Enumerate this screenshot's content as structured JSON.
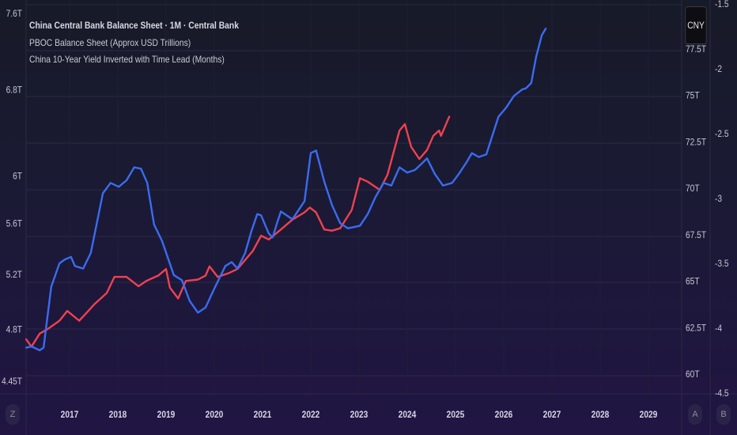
{
  "legend": {
    "title": "China Central Bank Balance Sheet · 1M · Central Bank",
    "series_1": "PBOC Balance Sheet (Approx USD Trillions)",
    "series_2": "China 10-Year Yield Inverted with Time Lead (Months)"
  },
  "currency_badge": "CNY",
  "axis_buttons": {
    "left": "Z",
    "right_a": "A",
    "right_b": "B"
  },
  "colors": {
    "red_series": "#f0414f",
    "blue_series": "#3a6cf0",
    "grid": "#2c2c44",
    "text": "#c7c6d4"
  },
  "chart_data": {
    "type": "line",
    "title": "China Central Bank Balance Sheet · 1M · Central Bank",
    "xlabel": "",
    "x_ticks": [
      "2017",
      "2018",
      "2019",
      "2020",
      "2021",
      "2022",
      "2023",
      "2024",
      "2025",
      "2026",
      "2027",
      "2028",
      "2029"
    ],
    "xlim": [
      2016.1,
      2030.0
    ],
    "left_axis": {
      "ticks": [
        "7.6T",
        "6.8T",
        "6T",
        "5.6T",
        "5.2T",
        "4.8T",
        "4.45T"
      ],
      "tick_values": [
        7.6,
        6.8,
        6.0,
        5.6,
        5.2,
        4.8,
        4.45
      ],
      "range": [
        4.35,
        7.75
      ],
      "scale": "log"
    },
    "right_axis_a": {
      "ticks": [
        "77.5T",
        "75T",
        "72.5T",
        "70T",
        "67.5T",
        "65T",
        "62.5T",
        "60T"
      ],
      "tick_values": [
        77.5,
        75,
        72.5,
        70,
        67.5,
        65,
        62.5,
        60
      ]
    },
    "right_axis_b": {
      "ticks": [
        "-1.5",
        "-2",
        "-2.5",
        "-3",
        "-3.5",
        "-4",
        "-4.5"
      ],
      "tick_values": [
        -1.5,
        -2,
        -2.5,
        -3,
        -3.5,
        -4,
        -4.5
      ],
      "range": [
        -1.47,
        -4.53
      ]
    },
    "grid": true,
    "legend_position": "top-left",
    "series": [
      {
        "name": "PBOC Balance Sheet (Approx USD Trillions)",
        "axis": "left",
        "color": "#f0414f",
        "x": [
          2016.1,
          2016.21,
          2016.38,
          2016.54,
          2016.79,
          2016.95,
          2017.2,
          2017.36,
          2017.52,
          2017.77,
          2017.93,
          2018.18,
          2018.43,
          2018.59,
          2018.84,
          2019.0,
          2019.08,
          2019.25,
          2019.41,
          2019.66,
          2019.82,
          2019.9,
          2020.07,
          2020.31,
          2020.48,
          2020.8,
          2020.97,
          2021.13,
          2021.38,
          2021.62,
          2021.87,
          2021.98,
          2022.11,
          2022.28,
          2022.44,
          2022.61,
          2022.85,
          2023.02,
          2023.18,
          2023.43,
          2023.59,
          2023.84,
          2023.95,
          2024.08,
          2024.25,
          2024.41,
          2024.54,
          2024.66,
          2024.7,
          2024.87
        ],
        "y": [
          4.73,
          4.68,
          4.77,
          4.8,
          4.86,
          4.93,
          4.86,
          4.92,
          4.98,
          5.06,
          5.18,
          5.18,
          5.11,
          5.15,
          5.19,
          5.24,
          5.1,
          5.02,
          5.15,
          5.16,
          5.19,
          5.26,
          5.18,
          5.21,
          5.24,
          5.38,
          5.5,
          5.47,
          5.55,
          5.63,
          5.69,
          5.73,
          5.69,
          5.55,
          5.54,
          5.56,
          5.71,
          5.98,
          5.95,
          5.88,
          6.01,
          6.41,
          6.47,
          6.26,
          6.15,
          6.23,
          6.36,
          6.41,
          6.36,
          6.54
        ]
      },
      {
        "name": "China 10-Year Yield Inverted with Time Lead (Months)",
        "axis": "right_b",
        "color": "#3a6cf0",
        "x": [
          2016.1,
          2016.21,
          2016.38,
          2016.46,
          2016.62,
          2016.79,
          2016.9,
          2017.03,
          2017.11,
          2017.28,
          2017.44,
          2017.69,
          2017.85,
          2018.02,
          2018.18,
          2018.34,
          2018.48,
          2018.61,
          2018.75,
          2018.92,
          2019.16,
          2019.33,
          2019.49,
          2019.66,
          2019.82,
          2019.98,
          2020.23,
          2020.36,
          2020.48,
          2020.64,
          2020.77,
          2020.89,
          2020.97,
          2021.13,
          2021.21,
          2021.3,
          2021.38,
          2021.62,
          2021.87,
          2022.0,
          2022.11,
          2022.28,
          2022.44,
          2022.61,
          2022.77,
          2023.02,
          2023.18,
          2023.34,
          2023.51,
          2023.67,
          2023.84,
          2024.0,
          2024.16,
          2024.33,
          2024.41,
          2024.57,
          2024.74,
          2024.93,
          2025.07,
          2025.23,
          2025.34,
          2025.48,
          2025.64,
          2025.89,
          2026.05,
          2026.21,
          2026.38,
          2026.46,
          2026.57,
          2026.67,
          2026.79,
          2026.87
        ],
        "y": [
          -4.15,
          -4.14,
          -4.17,
          -4.15,
          -3.68,
          -3.5,
          -3.47,
          -3.45,
          -3.52,
          -3.54,
          -3.42,
          -2.96,
          -2.88,
          -2.91,
          -2.86,
          -2.76,
          -2.77,
          -2.88,
          -3.2,
          -3.33,
          -3.59,
          -3.63,
          -3.79,
          -3.88,
          -3.84,
          -3.71,
          -3.52,
          -3.49,
          -3.54,
          -3.42,
          -3.25,
          -3.12,
          -3.13,
          -3.27,
          -3.3,
          -3.19,
          -3.1,
          -3.16,
          -3.02,
          -2.65,
          -2.63,
          -2.87,
          -3.05,
          -3.19,
          -3.23,
          -3.21,
          -3.12,
          -2.99,
          -2.88,
          -2.9,
          -2.76,
          -2.8,
          -2.78,
          -2.72,
          -2.69,
          -2.81,
          -2.9,
          -2.88,
          -2.81,
          -2.72,
          -2.65,
          -2.68,
          -2.66,
          -2.37,
          -2.3,
          -2.21,
          -2.16,
          -2.15,
          -2.11,
          -1.91,
          -1.74,
          -1.69
        ]
      }
    ]
  }
}
